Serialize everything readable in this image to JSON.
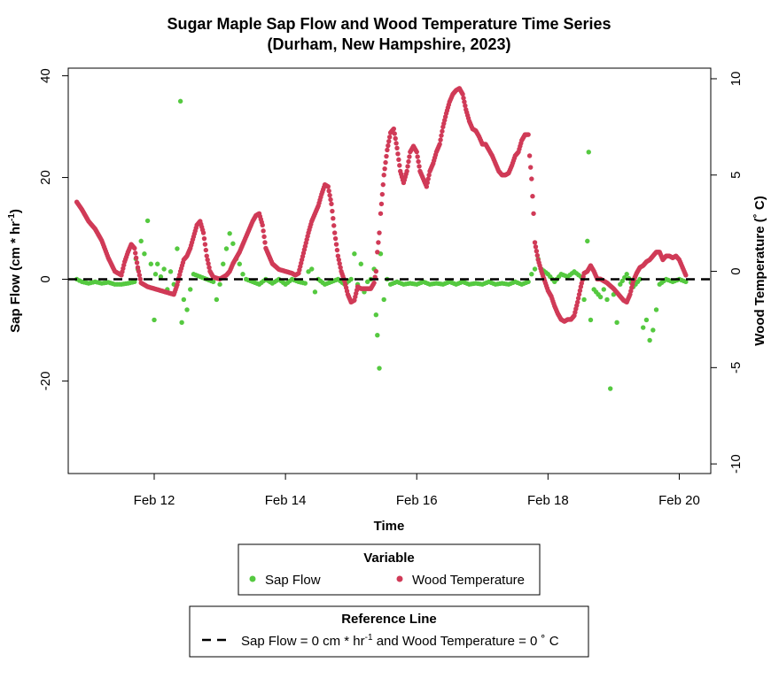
{
  "chart_data": {
    "type": "scatter",
    "title_lines": [
      "Sugar Maple Sap Flow and Wood Temperature Time Series",
      "(Durham, New Hampshire, 2023)"
    ],
    "xlabel": "Time",
    "ylabel_left_main": "Sap Flow (cm * hr",
    "ylabel_left_sup": "-1",
    "ylabel_left_end": ")",
    "ylabel_right": "Wood Temperature (˚ C)",
    "x_ticks": [
      {
        "day": 12,
        "label": "Feb 12"
      },
      {
        "day": 14,
        "label": "Feb 14"
      },
      {
        "day": 16,
        "label": "Feb 16"
      },
      {
        "day": 18,
        "label": "Feb 18"
      },
      {
        "day": 20,
        "label": "Feb 20"
      }
    ],
    "x_range_days": [
      10.69,
      20.48
    ],
    "y_left_ticks": [
      "40",
      "20",
      "0",
      "-20"
    ],
    "y_left_range": [
      -38.2,
      41.5
    ],
    "y_right_ticks": [
      "10",
      "5",
      "0",
      "-5",
      "-10"
    ],
    "y_right_range": [
      -10.5,
      10.55
    ],
    "grid": false,
    "series": [
      {
        "name": "Sap Flow",
        "axis": "left",
        "color": "#55c940",
        "points": [
          [
            10.82,
            0
          ],
          [
            10.9,
            -0.5
          ],
          [
            11.0,
            -0.8
          ],
          [
            11.1,
            -0.5
          ],
          [
            11.2,
            -0.8
          ],
          [
            11.3,
            -0.6
          ],
          [
            11.4,
            -1
          ],
          [
            11.5,
            -1
          ],
          [
            11.6,
            -0.8
          ],
          [
            11.7,
            -0.5
          ],
          [
            11.72,
            4
          ],
          [
            11.75,
            2
          ],
          [
            11.8,
            7.5
          ],
          [
            11.85,
            5
          ],
          [
            11.9,
            11.5
          ],
          [
            11.95,
            3
          ],
          [
            12.0,
            -8
          ],
          [
            12.02,
            1
          ],
          [
            12.05,
            3
          ],
          [
            12.1,
            0.5
          ],
          [
            12.15,
            2
          ],
          [
            12.2,
            -2
          ],
          [
            12.25,
            1.5
          ],
          [
            12.3,
            -1
          ],
          [
            12.35,
            6
          ],
          [
            12.4,
            35
          ],
          [
            12.42,
            -8.5
          ],
          [
            12.45,
            -4
          ],
          [
            12.5,
            -6
          ],
          [
            12.55,
            -2
          ],
          [
            12.6,
            1
          ],
          [
            12.7,
            0.5
          ],
          [
            12.8,
            0
          ],
          [
            12.9,
            -0.5
          ],
          [
            12.95,
            -4
          ],
          [
            13.0,
            -1
          ],
          [
            13.05,
            3
          ],
          [
            13.1,
            6
          ],
          [
            13.15,
            9
          ],
          [
            13.2,
            7
          ],
          [
            13.25,
            4
          ],
          [
            13.3,
            3
          ],
          [
            13.35,
            1
          ],
          [
            13.4,
            0
          ],
          [
            13.5,
            -0.5
          ],
          [
            13.6,
            -1
          ],
          [
            13.7,
            0
          ],
          [
            13.8,
            -0.8
          ],
          [
            13.9,
            0
          ],
          [
            14.0,
            -1
          ],
          [
            14.1,
            0
          ],
          [
            14.2,
            -0.5
          ],
          [
            14.3,
            -0.8
          ],
          [
            14.35,
            1.5
          ],
          [
            14.4,
            2
          ],
          [
            14.45,
            -2.5
          ],
          [
            14.5,
            0
          ],
          [
            14.6,
            -1
          ],
          [
            14.7,
            -0.5
          ],
          [
            14.8,
            0
          ],
          [
            14.9,
            -1
          ],
          [
            15.0,
            0
          ],
          [
            15.05,
            5
          ],
          [
            15.1,
            -1
          ],
          [
            15.15,
            3
          ],
          [
            15.2,
            -2.5
          ],
          [
            15.25,
            -0.5
          ],
          [
            15.3,
            0
          ],
          [
            15.35,
            2
          ],
          [
            15.38,
            -7
          ],
          [
            15.4,
            -11
          ],
          [
            15.43,
            -17.5
          ],
          [
            15.45,
            5
          ],
          [
            15.5,
            -4
          ],
          [
            15.55,
            0
          ],
          [
            15.6,
            -1
          ],
          [
            15.7,
            -0.5
          ],
          [
            15.8,
            -1
          ],
          [
            15.9,
            -0.8
          ],
          [
            16.0,
            -1
          ],
          [
            16.1,
            -0.5
          ],
          [
            16.2,
            -1
          ],
          [
            16.3,
            -0.8
          ],
          [
            16.4,
            -1
          ],
          [
            16.5,
            -0.5
          ],
          [
            16.6,
            -1
          ],
          [
            16.7,
            -0.5
          ],
          [
            16.8,
            -1
          ],
          [
            16.9,
            -0.8
          ],
          [
            17.0,
            -1
          ],
          [
            17.1,
            -0.5
          ],
          [
            17.2,
            -1
          ],
          [
            17.3,
            -0.8
          ],
          [
            17.4,
            -1
          ],
          [
            17.5,
            -0.5
          ],
          [
            17.6,
            -1
          ],
          [
            17.7,
            -0.5
          ],
          [
            17.75,
            1
          ],
          [
            17.8,
            2
          ],
          [
            17.85,
            4
          ],
          [
            17.9,
            2
          ],
          [
            18.0,
            1
          ],
          [
            18.1,
            -0.5
          ],
          [
            18.2,
            1
          ],
          [
            18.3,
            0.5
          ],
          [
            18.4,
            1.5
          ],
          [
            18.5,
            0.5
          ],
          [
            18.55,
            -4
          ],
          [
            18.6,
            7.5
          ],
          [
            18.62,
            25
          ],
          [
            18.65,
            -8
          ],
          [
            18.7,
            -2
          ],
          [
            18.8,
            -3.5
          ],
          [
            18.85,
            -2
          ],
          [
            18.9,
            -4
          ],
          [
            18.95,
            -21.5
          ],
          [
            19.0,
            -3
          ],
          [
            19.05,
            -8.5
          ],
          [
            19.1,
            -1
          ],
          [
            19.2,
            1
          ],
          [
            19.3,
            -1.5
          ],
          [
            19.4,
            0
          ],
          [
            19.45,
            -9.5
          ],
          [
            19.5,
            -8
          ],
          [
            19.55,
            -12
          ],
          [
            19.6,
            -10
          ],
          [
            19.65,
            -6
          ],
          [
            19.7,
            -1
          ],
          [
            19.8,
            0
          ],
          [
            19.9,
            -0.5
          ],
          [
            20.0,
            0
          ],
          [
            20.1,
            -0.5
          ]
        ]
      },
      {
        "name": "Wood Temperature",
        "axis": "right",
        "color": "#d03a57",
        "points": [
          [
            10.82,
            3.6
          ],
          [
            10.9,
            3.2
          ],
          [
            11.0,
            2.6
          ],
          [
            11.1,
            2.2
          ],
          [
            11.2,
            1.6
          ],
          [
            11.3,
            0.7
          ],
          [
            11.4,
            0
          ],
          [
            11.5,
            -0.2
          ],
          [
            11.55,
            0.5
          ],
          [
            11.6,
            1.0
          ],
          [
            11.65,
            1.4
          ],
          [
            11.7,
            1.2
          ],
          [
            11.75,
            0.2
          ],
          [
            11.8,
            -0.6
          ],
          [
            11.9,
            -0.8
          ],
          [
            12.0,
            -0.9
          ],
          [
            12.1,
            -1.0
          ],
          [
            12.2,
            -1.1
          ],
          [
            12.3,
            -1.2
          ],
          [
            12.35,
            -0.7
          ],
          [
            12.4,
            0
          ],
          [
            12.45,
            0.6
          ],
          [
            12.5,
            0.8
          ],
          [
            12.55,
            1.2
          ],
          [
            12.6,
            1.8
          ],
          [
            12.65,
            2.4
          ],
          [
            12.7,
            2.6
          ],
          [
            12.75,
            2.0
          ],
          [
            12.8,
            0.8
          ],
          [
            12.85,
            0
          ],
          [
            12.9,
            -0.3
          ],
          [
            13.0,
            -0.4
          ],
          [
            13.1,
            -0.2
          ],
          [
            13.15,
            0
          ],
          [
            13.2,
            0.4
          ],
          [
            13.3,
            1.0
          ],
          [
            13.4,
            1.8
          ],
          [
            13.5,
            2.6
          ],
          [
            13.55,
            2.9
          ],
          [
            13.6,
            3.0
          ],
          [
            13.65,
            2.4
          ],
          [
            13.7,
            1.2
          ],
          [
            13.8,
            0.4
          ],
          [
            13.9,
            0.1
          ],
          [
            14.0,
            0
          ],
          [
            14.1,
            -0.1
          ],
          [
            14.15,
            -0.2
          ],
          [
            14.2,
            -0.1
          ],
          [
            14.25,
            0.6
          ],
          [
            14.3,
            1.3
          ],
          [
            14.35,
            2.0
          ],
          [
            14.4,
            2.6
          ],
          [
            14.5,
            3.4
          ],
          [
            14.55,
            4.0
          ],
          [
            14.6,
            4.5
          ],
          [
            14.65,
            4.4
          ],
          [
            14.7,
            3.5
          ],
          [
            14.75,
            2.0
          ],
          [
            14.8,
            0.8
          ],
          [
            14.85,
            0
          ],
          [
            14.9,
            -0.5
          ],
          [
            14.95,
            -1.2
          ],
          [
            15.0,
            -1.6
          ],
          [
            15.05,
            -1.5
          ],
          [
            15.1,
            -0.8
          ],
          [
            15.15,
            -0.9
          ],
          [
            15.2,
            -0.9
          ],
          [
            15.25,
            -0.9
          ],
          [
            15.3,
            -0.9
          ],
          [
            15.35,
            -0.6
          ],
          [
            15.38,
            0
          ],
          [
            15.4,
            1
          ],
          [
            15.43,
            2
          ],
          [
            15.45,
            3
          ],
          [
            15.5,
            5
          ],
          [
            15.55,
            6.3
          ],
          [
            15.6,
            7.2
          ],
          [
            15.65,
            7.4
          ],
          [
            15.7,
            6.4
          ],
          [
            15.75,
            5.2
          ],
          [
            15.8,
            4.6
          ],
          [
            15.85,
            5.2
          ],
          [
            15.9,
            6.2
          ],
          [
            15.95,
            6.5
          ],
          [
            16.0,
            6.2
          ],
          [
            16.05,
            5.2
          ],
          [
            16.1,
            4.8
          ],
          [
            16.15,
            4.4
          ],
          [
            16.2,
            5.2
          ],
          [
            16.25,
            5.6
          ],
          [
            16.3,
            6.2
          ],
          [
            16.35,
            6.6
          ],
          [
            16.4,
            7.5
          ],
          [
            16.45,
            8.2
          ],
          [
            16.5,
            8.8
          ],
          [
            16.55,
            9.2
          ],
          [
            16.6,
            9.4
          ],
          [
            16.65,
            9.5
          ],
          [
            16.7,
            9.2
          ],
          [
            16.75,
            8.4
          ],
          [
            16.8,
            7.8
          ],
          [
            16.85,
            7.4
          ],
          [
            16.9,
            7.3
          ],
          [
            16.95,
            7.0
          ],
          [
            17.0,
            6.6
          ],
          [
            17.05,
            6.6
          ],
          [
            17.1,
            6.3
          ],
          [
            17.15,
            6.0
          ],
          [
            17.2,
            5.6
          ],
          [
            17.25,
            5.2
          ],
          [
            17.3,
            5.0
          ],
          [
            17.35,
            5.0
          ],
          [
            17.4,
            5.1
          ],
          [
            17.45,
            5.5
          ],
          [
            17.5,
            6.0
          ],
          [
            17.55,
            6.2
          ],
          [
            17.6,
            6.8
          ],
          [
            17.65,
            7.1
          ],
          [
            17.7,
            7.1
          ],
          [
            17.72,
            6.0
          ],
          [
            17.75,
            4.8
          ],
          [
            17.78,
            3.0
          ],
          [
            17.8,
            1.5
          ],
          [
            17.85,
            0.6
          ],
          [
            17.9,
            0
          ],
          [
            17.95,
            -0.5
          ],
          [
            18.0,
            -1.0
          ],
          [
            18.05,
            -1.3
          ],
          [
            18.1,
            -1.8
          ],
          [
            18.15,
            -2.2
          ],
          [
            18.2,
            -2.5
          ],
          [
            18.25,
            -2.6
          ],
          [
            18.3,
            -2.5
          ],
          [
            18.35,
            -2.5
          ],
          [
            18.4,
            -2.3
          ],
          [
            18.45,
            -1.6
          ],
          [
            18.5,
            -0.8
          ],
          [
            18.55,
            -0.1
          ],
          [
            18.6,
            0
          ],
          [
            18.65,
            0.3
          ],
          [
            18.7,
            0
          ],
          [
            18.75,
            -0.4
          ],
          [
            18.8,
            -0.4
          ],
          [
            18.9,
            -0.6
          ],
          [
            19.0,
            -0.9
          ],
          [
            19.1,
            -1.3
          ],
          [
            19.15,
            -1.5
          ],
          [
            19.2,
            -1.6
          ],
          [
            19.25,
            -1.2
          ],
          [
            19.3,
            -0.5
          ],
          [
            19.35,
            -0.1
          ],
          [
            19.4,
            0.2
          ],
          [
            19.45,
            0.3
          ],
          [
            19.5,
            0.5
          ],
          [
            19.55,
            0.6
          ],
          [
            19.6,
            0.8
          ],
          [
            19.65,
            1.0
          ],
          [
            19.7,
            1.0
          ],
          [
            19.75,
            0.6
          ],
          [
            19.8,
            0.8
          ],
          [
            19.85,
            0.8
          ],
          [
            19.9,
            0.7
          ],
          [
            19.95,
            0.8
          ],
          [
            20.0,
            0.6
          ],
          [
            20.05,
            0.2
          ],
          [
            20.1,
            -0.2
          ]
        ]
      }
    ],
    "reference_line": {
      "value": 0,
      "style": "dashed",
      "color": "#000000"
    },
    "legend_variable": {
      "title": "Variable",
      "items": [
        {
          "label": "Sap Flow",
          "color": "#55c940"
        },
        {
          "label": "Wood Temperature",
          "color": "#d03a57"
        }
      ],
      "placement": "bottom"
    },
    "legend_reference": {
      "title": "Reference Line",
      "label_main": "Sap Flow = 0 cm * hr",
      "label_sup": "-1",
      "label_end": " and Wood Temperature = 0 ˚ C",
      "placement": "bottom"
    }
  }
}
